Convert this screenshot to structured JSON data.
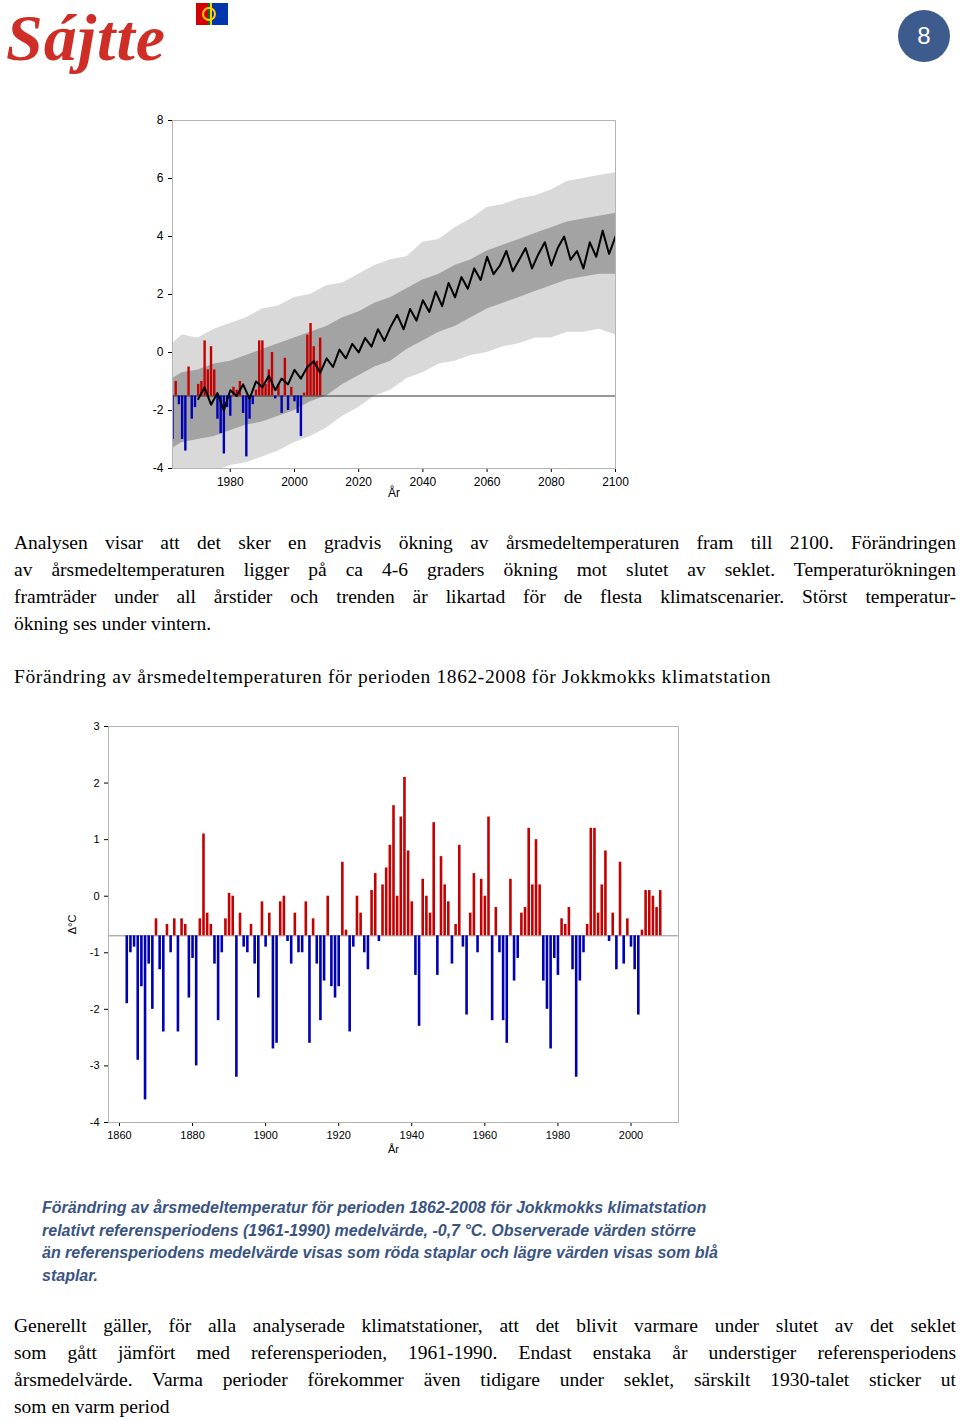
{
  "header": {
    "logo": "Sájtte",
    "page_number": "8"
  },
  "text_1": {
    "lines": [
      "Analysen visar att det sker en gradvis ökning av årsmedeltemperaturen fram till 2100. Förändringen",
      "av årsmedeltemperaturen ligger på ca 4-6 graders ökning mot slutet av seklet. Temperaturökningen",
      "framträder under all årstider och trenden är likartad för de flesta klimatscenarier. Störst temperatur-",
      "ökning ses under vintern."
    ]
  },
  "text_2": {
    "lines": [
      "Generellt gäller, för alla analyserade klimatstationer, att det blivit varmare under slutet av det seklet",
      "som gått jämfört med referensperioden, 1961-1990. Endast enstaka år understiger referensperiodens",
      "årsmedelvärde. Varma perioder förekommer även tidigare under seklet, särskilt 1930-talet sticker ut",
      "som en varm period"
    ]
  },
  "chart_data": [
    {
      "type": "combo",
      "xlabel": "År",
      "xlim": [
        1962,
        2100
      ],
      "xticks": [
        1980,
        2000,
        2020,
        2040,
        2060,
        2080,
        2100
      ],
      "ylim": [
        -4,
        8
      ],
      "yticks": [
        -4,
        -2,
        0,
        2,
        4,
        6,
        8
      ],
      "baseline": -1.5,
      "series": [
        {
          "type": "area",
          "color": "#d9d9d9",
          "x": [
            1962,
            1965,
            1970,
            1975,
            1980,
            1985,
            1990,
            1995,
            2000,
            2005,
            2010,
            2015,
            2020,
            2025,
            2030,
            2035,
            2040,
            2045,
            2050,
            2055,
            2060,
            2065,
            2070,
            2075,
            2080,
            2085,
            2090,
            2095,
            2100
          ],
          "lower": [
            -4.3,
            -4.2,
            -4.0,
            -4.1,
            -3.9,
            -3.8,
            -3.6,
            -3.4,
            -3.1,
            -2.9,
            -2.6,
            -2.2,
            -1.9,
            -1.5,
            -1.3,
            -0.9,
            -0.7,
            -0.4,
            -0.3,
            -0.1,
            0.0,
            0.2,
            0.3,
            0.5,
            0.5,
            0.7,
            0.7,
            0.8,
            0.6
          ],
          "upper": [
            0.3,
            0.6,
            0.5,
            0.8,
            1.0,
            1.2,
            1.5,
            1.6,
            1.9,
            2.0,
            2.3,
            2.4,
            2.7,
            3.0,
            3.2,
            3.3,
            3.8,
            3.9,
            4.3,
            4.6,
            5.0,
            5.1,
            5.3,
            5.4,
            5.6,
            5.9,
            6.0,
            6.1,
            6.2
          ]
        },
        {
          "type": "area",
          "color": "#a3a3a3",
          "x": [
            1962,
            1965,
            1970,
            1975,
            1980,
            1985,
            1990,
            1995,
            2000,
            2005,
            2010,
            2015,
            2020,
            2025,
            2030,
            2035,
            2040,
            2045,
            2050,
            2055,
            2060,
            2065,
            2070,
            2075,
            2080,
            2085,
            2090,
            2095,
            2100
          ],
          "lower": [
            -3.3,
            -3.1,
            -3.0,
            -2.9,
            -2.7,
            -2.5,
            -2.4,
            -2.2,
            -2.0,
            -1.7,
            -1.5,
            -1.1,
            -0.8,
            -0.5,
            -0.3,
            0.1,
            0.4,
            0.7,
            0.9,
            1.2,
            1.5,
            1.7,
            1.9,
            2.1,
            2.3,
            2.5,
            2.6,
            2.7,
            2.7
          ],
          "upper": [
            -0.9,
            -0.7,
            -0.6,
            -0.4,
            -0.3,
            -0.1,
            0.1,
            0.3,
            0.5,
            0.7,
            0.9,
            1.2,
            1.4,
            1.7,
            1.9,
            2.2,
            2.5,
            2.7,
            3.0,
            3.2,
            3.5,
            3.7,
            3.9,
            4.1,
            4.3,
            4.5,
            4.6,
            4.7,
            4.8
          ]
        },
        {
          "type": "bar",
          "x": [
            1962,
            1963,
            1964,
            1965,
            1966,
            1967,
            1968,
            1969,
            1970,
            1971,
            1972,
            1973,
            1974,
            1975,
            1976,
            1977,
            1978,
            1979,
            1980,
            1981,
            1982,
            1983,
            1984,
            1985,
            1986,
            1987,
            1988,
            1989,
            1990,
            1991,
            1992,
            1993,
            1994,
            1995,
            1996,
            1997,
            1998,
            1999,
            2000,
            2001,
            2002,
            2003,
            2004,
            2005,
            2006,
            2007,
            2008
          ],
          "values": [
            -3.0,
            -1.0,
            -1.8,
            -3.0,
            -3.4,
            -0.5,
            -2.3,
            -1.9,
            -1.1,
            -1.0,
            0.4,
            -0.6,
            0.2,
            -0.6,
            -2.3,
            -2.8,
            -3.5,
            -1.9,
            -2.2,
            -1.2,
            -1.3,
            -1.0,
            -2.1,
            -3.6,
            -2.3,
            -1.8,
            -1.3,
            0.4,
            0.4,
            -1.1,
            -0.6,
            0.0,
            -1.6,
            -1.1,
            -2.1,
            -0.2,
            -2.0,
            -1.2,
            -1.7,
            -2.1,
            -2.9,
            -1.4,
            0.6,
            1.0,
            0.2,
            -0.3,
            0.5
          ],
          "colors": [
            "#0000b4",
            "#c40000",
            "#0000b4",
            "#0000b4",
            "#0000b4",
            "#c40000",
            "#0000b4",
            "#0000b4",
            "#c40000",
            "#c40000",
            "#c40000",
            "#c40000",
            "#c40000",
            "#c40000",
            "#0000b4",
            "#0000b4",
            "#0000b4",
            "#0000b4",
            "#0000b4",
            "#c40000",
            "#c40000",
            "#c40000",
            "#0000b4",
            "#0000b4",
            "#0000b4",
            "#0000b4",
            "#c40000",
            "#c40000",
            "#c40000",
            "#c40000",
            "#c40000",
            "#c40000",
            "#0000b4",
            "#c40000",
            "#0000b4",
            "#c40000",
            "#0000b4",
            "#c40000",
            "#0000b4",
            "#0000b4",
            "#0000b4",
            "#c40000",
            "#c40000",
            "#c40000",
            "#c40000",
            "#c40000",
            "#c40000"
          ]
        },
        {
          "type": "line",
          "color": "#000000",
          "x": [
            1970,
            1972,
            1974,
            1976,
            1978,
            1980,
            1982,
            1984,
            1986,
            1988,
            1990,
            1992,
            1994,
            1996,
            1998,
            2000,
            2002,
            2004,
            2006,
            2008,
            2010,
            2012,
            2014,
            2016,
            2018,
            2020,
            2022,
            2024,
            2026,
            2028,
            2030,
            2032,
            2034,
            2036,
            2038,
            2040,
            2042,
            2044,
            2046,
            2048,
            2050,
            2052,
            2054,
            2056,
            2058,
            2060,
            2062,
            2064,
            2066,
            2068,
            2070,
            2072,
            2074,
            2076,
            2078,
            2080,
            2082,
            2084,
            2086,
            2088,
            2090,
            2092,
            2094,
            2096,
            2098,
            2100
          ],
          "values": [
            -1.6,
            -1.2,
            -1.8,
            -1.4,
            -2.0,
            -1.3,
            -1.5,
            -1.1,
            -1.6,
            -1.0,
            -1.2,
            -0.8,
            -1.3,
            -0.9,
            -1.1,
            -0.6,
            -0.9,
            -0.5,
            -0.3,
            -0.7,
            -0.2,
            -0.5,
            0.1,
            -0.2,
            0.3,
            0.0,
            0.5,
            0.2,
            0.8,
            0.4,
            0.9,
            1.3,
            0.8,
            1.5,
            1.1,
            1.8,
            1.4,
            2.1,
            1.6,
            2.4,
            1.9,
            2.6,
            2.2,
            2.9,
            2.5,
            3.3,
            2.7,
            3.0,
            3.5,
            2.8,
            3.2,
            3.6,
            2.9,
            3.4,
            3.8,
            3.0,
            3.6,
            4.0,
            3.2,
            3.5,
            2.9,
            3.8,
            3.3,
            4.2,
            3.4,
            4.0
          ]
        }
      ]
    },
    {
      "type": "bar",
      "title": "Förändring av årsmedeltemperaturen för perioden 1862-2008 för Jokkmokks klimatstation",
      "caption": [
        "Förändring av årsmedeltemperatur för perioden 1862-2008 för Jokkmokks klimatstation",
        "relativt referensperiodens (1961-1990) medelvärde, -0,7 °C. Observerade värden större",
        "än referensperiodens medelvärde visas som röda staplar och lägre värden visas som blå",
        "staplar."
      ],
      "xlabel": "År",
      "ylabel": "Δ°C",
      "xlim": [
        1857,
        2013
      ],
      "xticks": [
        1860,
        1880,
        1900,
        1920,
        1940,
        1960,
        1980,
        2000
      ],
      "ylim": [
        -4,
        3
      ],
      "yticks": [
        -4,
        -3,
        -2,
        -1,
        0,
        1,
        2,
        3
      ],
      "baseline": -0.7,
      "x": [
        1862,
        1863,
        1864,
        1865,
        1866,
        1867,
        1868,
        1869,
        1870,
        1871,
        1872,
        1873,
        1874,
        1875,
        1876,
        1877,
        1878,
        1879,
        1880,
        1881,
        1882,
        1883,
        1884,
        1885,
        1886,
        1887,
        1888,
        1889,
        1890,
        1891,
        1892,
        1893,
        1894,
        1895,
        1896,
        1897,
        1898,
        1899,
        1900,
        1901,
        1902,
        1903,
        1904,
        1905,
        1906,
        1907,
        1908,
        1909,
        1910,
        1911,
        1912,
        1913,
        1914,
        1915,
        1916,
        1917,
        1918,
        1919,
        1920,
        1921,
        1922,
        1923,
        1924,
        1925,
        1926,
        1927,
        1928,
        1929,
        1930,
        1931,
        1932,
        1933,
        1934,
        1935,
        1936,
        1937,
        1938,
        1939,
        1940,
        1941,
        1942,
        1943,
        1944,
        1945,
        1946,
        1947,
        1948,
        1949,
        1950,
        1951,
        1952,
        1953,
        1954,
        1955,
        1956,
        1957,
        1958,
        1959,
        1960,
        1961,
        1962,
        1963,
        1964,
        1965,
        1966,
        1967,
        1968,
        1969,
        1970,
        1971,
        1972,
        1973,
        1974,
        1975,
        1976,
        1977,
        1978,
        1979,
        1980,
        1981,
        1982,
        1983,
        1984,
        1985,
        1986,
        1987,
        1988,
        1989,
        1990,
        1991,
        1992,
        1993,
        1994,
        1995,
        1996,
        1997,
        1998,
        1999,
        2000,
        2001,
        2002,
        2003,
        2004,
        2005,
        2006,
        2007,
        2008
      ],
      "values": [
        -1.9,
        -1.0,
        -0.9,
        -2.9,
        -1.6,
        -3.6,
        -1.2,
        -2.0,
        -0.4,
        -1.3,
        -2.4,
        -0.5,
        -1.0,
        -0.4,
        -2.4,
        -0.4,
        -0.5,
        -1.8,
        -1.1,
        -3.0,
        -0.4,
        1.1,
        -0.3,
        -0.5,
        -1.2,
        -2.2,
        -1.0,
        -0.4,
        0.05,
        0.0,
        -3.2,
        -0.3,
        -0.9,
        -1.0,
        -0.5,
        -1.2,
        -1.8,
        -0.1,
        -0.9,
        -0.3,
        -2.7,
        -2.6,
        -0.1,
        0.0,
        -0.8,
        -1.2,
        -0.3,
        -1.0,
        -1.0,
        -0.1,
        -2.6,
        -0.4,
        -1.2,
        -2.2,
        -1.5,
        0.0,
        -1.6,
        -1.8,
        -1.6,
        0.6,
        -0.6,
        -2.4,
        -0.9,
        0.0,
        -0.3,
        -1.0,
        -1.3,
        0.1,
        0.4,
        -0.8,
        0.2,
        0.5,
        0.9,
        1.6,
        0.0,
        1.4,
        2.1,
        0.8,
        -0.1,
        -1.4,
        -2.3,
        0.3,
        0.0,
        -0.3,
        1.3,
        -1.4,
        0.7,
        0.2,
        -0.1,
        -1.2,
        -0.5,
        0.9,
        -0.9,
        -2.1,
        -0.3,
        0.4,
        -1.0,
        0.3,
        0.0,
        1.4,
        -2.2,
        -0.2,
        -1.0,
        -2.2,
        -2.6,
        0.3,
        -1.5,
        -1.1,
        -0.3,
        -0.2,
        1.2,
        0.2,
        1.0,
        0.2,
        -1.5,
        -2.0,
        -2.7,
        -1.1,
        -1.4,
        -0.4,
        -0.5,
        -0.2,
        -1.3,
        -3.2,
        -1.5,
        -1.0,
        -0.5,
        1.2,
        1.2,
        -0.3,
        0.2,
        0.8,
        -0.8,
        -0.3,
        -1.3,
        0.6,
        -1.2,
        -0.4,
        -0.9,
        -1.3,
        -2.1,
        -0.6,
        0.1,
        0.1,
        0.0,
        -0.2,
        0.1
      ],
      "colors": [
        "#0000b4",
        "#0000b4",
        "#0000b4",
        "#0000b4",
        "#0000b4",
        "#0000b4",
        "#0000b4",
        "#0000b4",
        "#c40000",
        "#0000b4",
        "#0000b4",
        "#c40000",
        "#0000b4",
        "#c40000",
        "#0000b4",
        "#c40000",
        "#c40000",
        "#0000b4",
        "#0000b4",
        "#0000b4",
        "#c40000",
        "#c40000",
        "#c40000",
        "#c40000",
        "#0000b4",
        "#0000b4",
        "#0000b4",
        "#c40000",
        "#c40000",
        "#c40000",
        "#0000b4",
        "#c40000",
        "#0000b4",
        "#0000b4",
        "#c40000",
        "#0000b4",
        "#0000b4",
        "#c40000",
        "#0000b4",
        "#c40000",
        "#0000b4",
        "#0000b4",
        "#c40000",
        "#c40000",
        "#0000b4",
        "#0000b4",
        "#c40000",
        "#0000b4",
        "#0000b4",
        "#c40000",
        "#0000b4",
        "#c40000",
        "#0000b4",
        "#0000b4",
        "#0000b4",
        "#c40000",
        "#0000b4",
        "#0000b4",
        "#0000b4",
        "#c40000",
        "#c40000",
        "#0000b4",
        "#0000b4",
        "#c40000",
        "#c40000",
        "#0000b4",
        "#0000b4",
        "#c40000",
        "#c40000",
        "#0000b4",
        "#c40000",
        "#c40000",
        "#c40000",
        "#c40000",
        "#c40000",
        "#c40000",
        "#c40000",
        "#c40000",
        "#c40000",
        "#0000b4",
        "#0000b4",
        "#c40000",
        "#c40000",
        "#c40000",
        "#c40000",
        "#0000b4",
        "#c40000",
        "#c40000",
        "#c40000",
        "#0000b4",
        "#c40000",
        "#c40000",
        "#0000b4",
        "#0000b4",
        "#c40000",
        "#c40000",
        "#0000b4",
        "#c40000",
        "#c40000",
        "#c40000",
        "#0000b4",
        "#c40000",
        "#0000b4",
        "#0000b4",
        "#0000b4",
        "#c40000",
        "#0000b4",
        "#0000b4",
        "#c40000",
        "#c40000",
        "#c40000",
        "#c40000",
        "#c40000",
        "#c40000",
        "#0000b4",
        "#0000b4",
        "#0000b4",
        "#0000b4",
        "#0000b4",
        "#c40000",
        "#c40000",
        "#c40000",
        "#0000b4",
        "#0000b4",
        "#0000b4",
        "#0000b4",
        "#c40000",
        "#c40000",
        "#c40000",
        "#c40000",
        "#c40000",
        "#c40000",
        "#0000b4",
        "#c40000",
        "#0000b4",
        "#c40000",
        "#0000b4",
        "#c40000",
        "#0000b4",
        "#0000b4",
        "#0000b4",
        "#c40000",
        "#c40000",
        "#c40000",
        "#c40000",
        "#c40000",
        "#c40000"
      ]
    }
  ]
}
